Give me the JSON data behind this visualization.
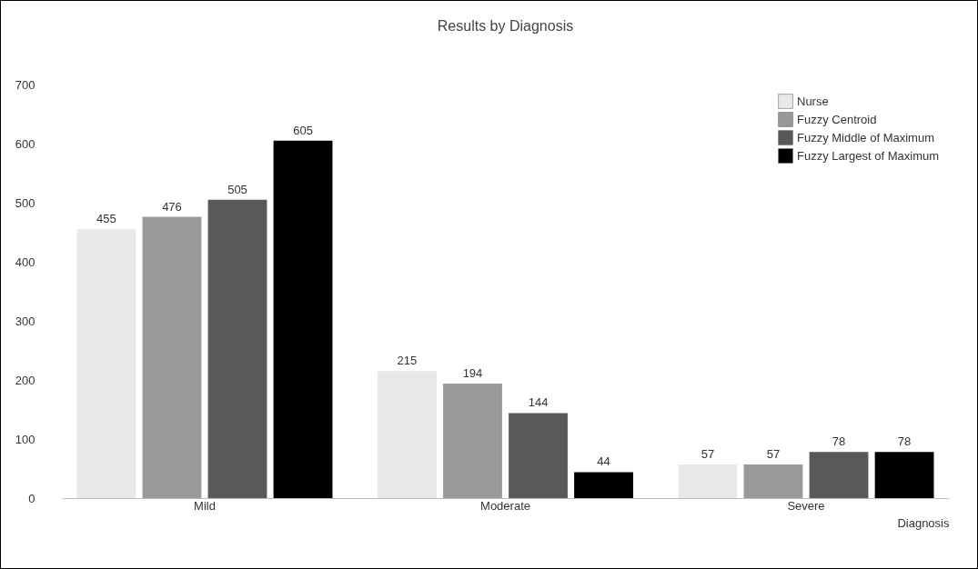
{
  "chart_data": {
    "type": "bar",
    "title": "Results by Diagnosis",
    "xlabel": "Diagnosis",
    "categories": [
      "Mild",
      "Moderate",
      "Severe"
    ],
    "series": [
      {
        "name": "Nurse",
        "color": "#e8e8e8",
        "values": [
          455,
          215,
          57
        ]
      },
      {
        "name": "Fuzzy Centroid",
        "color": "#999999",
        "values": [
          476,
          194,
          57
        ]
      },
      {
        "name": "Fuzzy Middle of Maximum",
        "color": "#595959",
        "values": [
          505,
          144,
          78
        ]
      },
      {
        "name": "Fuzzy Largest of Maximum",
        "color": "#000000",
        "values": [
          605,
          44,
          78
        ]
      }
    ],
    "ylim": [
      0,
      700
    ],
    "yticks": [
      0,
      100,
      200,
      300,
      400,
      500,
      600,
      700
    ],
    "grid": false,
    "legend": "top right",
    "data_labels": true
  }
}
